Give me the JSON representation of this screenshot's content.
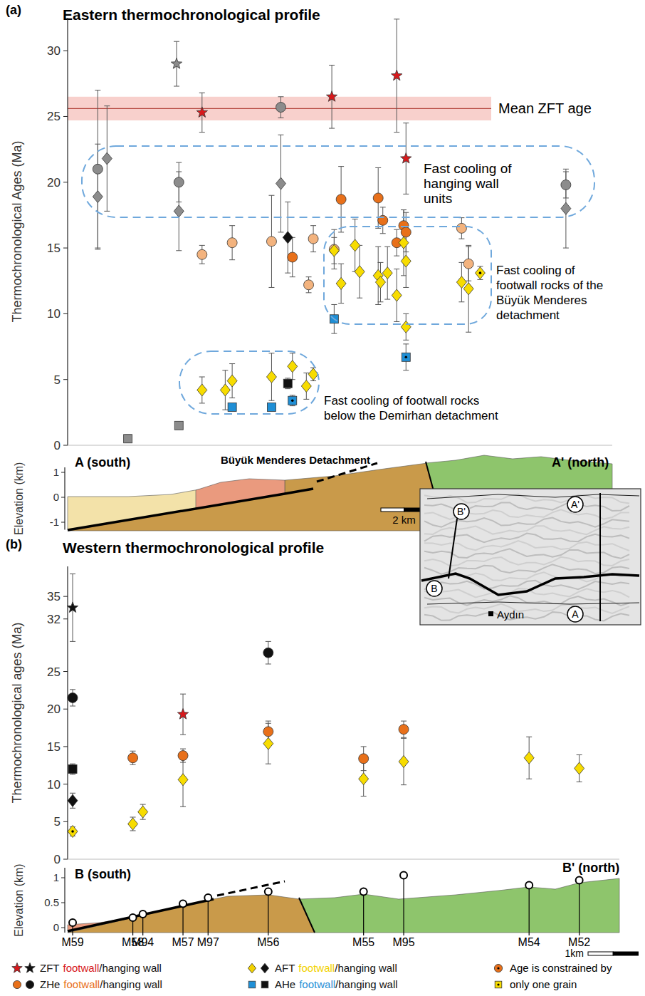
{
  "chart_data": [
    {
      "panel": "(a)",
      "type": "scatter",
      "title": "Eastern thermochronological profile",
      "y_label": "Thermochronological Ages (Ma)",
      "xlim": [
        0,
        23.5
      ],
      "ylim": [
        0,
        32.5
      ],
      "yticks": [
        0,
        5,
        10,
        15,
        20,
        25,
        30
      ],
      "tick_labels": "y",
      "grid": false,
      "mean_zft": {
        "label": "Mean ZFT age",
        "value": 25.6,
        "error": 0.9
      },
      "annotations": [
        {
          "lines": [
            "Fast cooling of",
            "hanging wall",
            "units"
          ]
        },
        {
          "lines": [
            "Fast cooling of",
            "footwall rocks of the",
            "Büyük Menderes",
            "detachment"
          ]
        },
        {
          "lines": [
            "Fast cooling of footwall rocks",
            "below the Demirhan detachment"
          ]
        }
      ],
      "series": [
        {
          "marker": "star",
          "color": "#d7191c",
          "x": [
            5.8,
            11.4,
            14.2,
            14.6
          ],
          "values": [
            25.3,
            26.5,
            28.1,
            21.8
          ],
          "errors": [
            1.5,
            2.4,
            4.3,
            2.7
          ],
          "one_grain": [
            false,
            false,
            false,
            false
          ]
        },
        {
          "marker": "star",
          "color": "#8c8c8c",
          "x": [
            4.7
          ],
          "values": [
            29.0
          ],
          "errors": [
            1.7
          ],
          "one_grain": [
            false
          ]
        },
        {
          "marker": "circle",
          "colors": [
            "#e8701a",
            "#e8701a",
            "#e8701a",
            "#e8701a",
            "#e8701a",
            "#e8701a",
            "#e8701a",
            "#f3b37e",
            "#f3b37e",
            "#f3b37e",
            "#f3b37e",
            "#f3b37e",
            "#f3b37e",
            "#f3b37e",
            "#f3b37e"
          ],
          "x": [
            9.7,
            11.8,
            13.4,
            13.6,
            14.2,
            14.5,
            14.6,
            5.8,
            7.1,
            8.8,
            10.6,
            10.4,
            11.5,
            17.0,
            17.3
          ],
          "values": [
            14.3,
            18.7,
            18.8,
            17.1,
            15.4,
            16.7,
            16.2,
            14.5,
            15.4,
            15.5,
            15.7,
            12.2,
            14.9,
            16.5,
            13.8
          ],
          "errors": [
            1.5,
            2.5,
            2.3,
            1.0,
            1.0,
            1.2,
            1.5,
            0.7,
            1.3,
            3.5,
            1.0,
            0.6,
            1.5,
            0.8,
            1.3
          ],
          "one_grain": [
            false,
            false,
            false,
            false,
            false,
            false,
            false,
            false,
            false,
            false,
            false,
            false,
            false,
            false,
            false
          ]
        },
        {
          "marker": "circle",
          "color": "#8c8c8c",
          "x": [
            1.3,
            4.8,
            9.2,
            21.5
          ],
          "values": [
            21.0,
            20.0,
            25.7,
            19.8
          ],
          "errors": [
            6.0,
            1.5,
            0.8,
            1.0
          ],
          "one_grain": [
            false,
            false,
            false,
            false
          ]
        },
        {
          "marker": "diamond",
          "color": "#f7dc00",
          "x": [
            5.8,
            6.8,
            7.1,
            8.8,
            9.7,
            10.3,
            10.6,
            11.5,
            11.8,
            12.4,
            12.6,
            13.4,
            13.5,
            13.8,
            14.2,
            14.5,
            14.6,
            14.6,
            17.0,
            17.3,
            17.8
          ],
          "values": [
            4.2,
            4.2,
            4.9,
            5.2,
            6.0,
            4.5,
            5.4,
            14.8,
            12.3,
            15.2,
            13.2,
            12.9,
            12.4,
            13.1,
            11.4,
            15.4,
            14.0,
            9.0,
            12.4,
            11.9,
            13.1
          ],
          "errors": [
            1.0,
            1.5,
            1.3,
            1.8,
            1.0,
            1.0,
            0.5,
            1.0,
            1.5,
            2.0,
            2.0,
            2.2,
            1.5,
            2.0,
            2.0,
            2.5,
            2.0,
            1.0,
            1.5,
            3.3,
            0.5
          ],
          "one_grain": [
            false,
            false,
            false,
            false,
            false,
            false,
            false,
            false,
            false,
            false,
            false,
            false,
            false,
            false,
            false,
            false,
            false,
            false,
            false,
            false,
            true
          ]
        },
        {
          "marker": "diamond",
          "colors": [
            "#8c8c8c",
            "#8c8c8c",
            "#8c8c8c",
            "#8c8c8c",
            "#8c8c8c",
            "#111111"
          ],
          "x": [
            1.3,
            1.7,
            4.8,
            9.2,
            21.5,
            9.5
          ],
          "values": [
            18.9,
            21.8,
            17.8,
            19.9,
            18.0,
            15.8
          ],
          "errors": [
            4.0,
            4.0,
            3.0,
            3.7,
            3.0,
            2.7
          ],
          "one_grain": [
            false,
            false,
            false,
            false,
            false,
            false
          ]
        },
        {
          "marker": "square",
          "color": "#1f8fd6",
          "x": [
            11.5,
            7.1,
            8.8,
            9.7,
            14.6
          ],
          "values": [
            9.6,
            2.9,
            2.9,
            3.4,
            6.7
          ],
          "errors": [
            1.1,
            0.2,
            0.2,
            0.4,
            1.0
          ],
          "one_grain": [
            false,
            false,
            false,
            true,
            true
          ]
        },
        {
          "marker": "square",
          "colors": [
            "#8c8c8c",
            "#8c8c8c",
            "#111111"
          ],
          "x": [
            2.6,
            4.8,
            9.5
          ],
          "values": [
            0.5,
            1.5,
            4.7
          ],
          "errors": [
            0.3,
            0.2,
            0.4
          ],
          "one_grain": [
            false,
            false,
            false
          ]
        }
      ],
      "section": {
        "ylabel": "Elevation (km)",
        "ylim": [
          -1.3,
          1.2
        ],
        "yticks": [
          -1,
          0,
          1
        ],
        "left_label": "A (south)",
        "right_label": "A' (north)",
        "fault_label": "Büyük Menderes Detachment",
        "scale_label": "2 km",
        "scale_length": 2
      }
    },
    {
      "panel": "(b)",
      "type": "scatter",
      "title": "Western thermochronological profile",
      "y_label": "Thermochronological ages (Ma)",
      "xlim": [
        0,
        11
      ],
      "ylim": [
        0,
        39
      ],
      "yticks": [
        0,
        5,
        10,
        15,
        20,
        25,
        32,
        35
      ],
      "tick_labels": "y",
      "grid": false,
      "series": [
        {
          "marker": "star",
          "color": "#d7191c",
          "x": [
            2.3
          ],
          "values": [
            19.3
          ],
          "errors": [
            2.7
          ],
          "one_grain": [
            false
          ]
        },
        {
          "marker": "star",
          "color": "#111111",
          "x": [
            0.1
          ],
          "values": [
            33.5
          ],
          "errors": [
            4.5
          ],
          "one_grain": [
            false
          ]
        },
        {
          "marker": "circle",
          "color": "#e8701a",
          "x": [
            1.3,
            2.3,
            4.0,
            5.9,
            6.7
          ],
          "values": [
            13.5,
            13.8,
            17.0,
            13.4,
            17.3
          ],
          "errors": [
            0.9,
            0.9,
            1.4,
            1.6,
            1.1
          ],
          "one_grain": [
            false,
            false,
            false,
            false,
            false
          ]
        },
        {
          "marker": "circle",
          "color": "#111111",
          "x": [
            0.1,
            4.0
          ],
          "values": [
            21.5,
            27.5
          ],
          "errors": [
            1.1,
            1.5
          ],
          "one_grain": [
            false,
            false
          ]
        },
        {
          "marker": "diamond",
          "color": "#f7dc00",
          "x": [
            0.1,
            1.3,
            1.5,
            2.3,
            4.0,
            5.9,
            6.7,
            9.2,
            10.2
          ],
          "values": [
            3.7,
            4.7,
            6.3,
            10.6,
            15.4,
            10.7,
            13.0,
            13.5,
            12.1
          ],
          "errors": [
            0.6,
            0.9,
            1.0,
            3.6,
            2.7,
            2.3,
            3.1,
            2.8,
            1.8
          ],
          "one_grain": [
            true,
            false,
            false,
            false,
            false,
            false,
            false,
            false,
            false
          ]
        },
        {
          "marker": "diamond",
          "color": "#111111",
          "x": [
            0.1
          ],
          "values": [
            7.8
          ],
          "errors": [
            1.0
          ],
          "one_grain": [
            false
          ]
        },
        {
          "marker": "square",
          "color": "#111111",
          "x": [
            0.1
          ],
          "values": [
            12.0
          ],
          "errors": [
            0.7
          ],
          "one_grain": [
            false
          ]
        }
      ],
      "section": {
        "ylabel": "Elevation (km)",
        "ylim": [
          -0.1,
          1.2
        ],
        "yticks": [
          0,
          0.5,
          1
        ],
        "left_label": "B (south)",
        "right_label": "B' (north)",
        "scale_label": "1km",
        "scale_length": 1,
        "samples": {
          "names": [
            "M59",
            "M58",
            "M94",
            "M57",
            "M97",
            "M56",
            "M55",
            "M95",
            "M54",
            "M52"
          ],
          "x": [
            0.1,
            1.3,
            1.5,
            2.3,
            2.8,
            4.0,
            5.9,
            6.7,
            9.2,
            10.2
          ],
          "elevation": [
            0.1,
            0.2,
            0.27,
            0.48,
            0.6,
            0.72,
            0.72,
            1.05,
            0.85,
            0.95
          ]
        }
      }
    }
  ],
  "inset_map": {
    "labels": [
      "B'",
      "A'",
      "B",
      "A"
    ],
    "town": "Aydın"
  },
  "figure_legend": {
    "separator": "/",
    "items": [
      {
        "method": "ZFT",
        "footwall": "footwall",
        "hanging_wall": "hanging wall",
        "marker": "star",
        "footwall_color": "#d7191c",
        "hanging_wall_color": "#111111"
      },
      {
        "method": "ZHe",
        "footwall": "footwall",
        "hanging_wall": "hanging wall",
        "marker": "circle",
        "footwall_color": "#e8701a",
        "hanging_wall_color": "#111111"
      },
      {
        "method": "AFT",
        "footwall": "footwall",
        "hanging_wall": "hanging wall",
        "marker": "diamond",
        "footwall_color": "#f2d200",
        "hanging_wall_color": "#111111"
      },
      {
        "method": "AHe",
        "footwall": "footwall",
        "hanging_wall": "hanging wall",
        "marker": "square",
        "footwall_color": "#1f8fd6",
        "hanging_wall_color": "#111111"
      }
    ],
    "one_grain_label": "Age is constrained by only one grain",
    "one_grain_markers": [
      "circle",
      "square"
    ],
    "one_grain_colors": [
      "#e8701a",
      "#f7dc00"
    ]
  }
}
